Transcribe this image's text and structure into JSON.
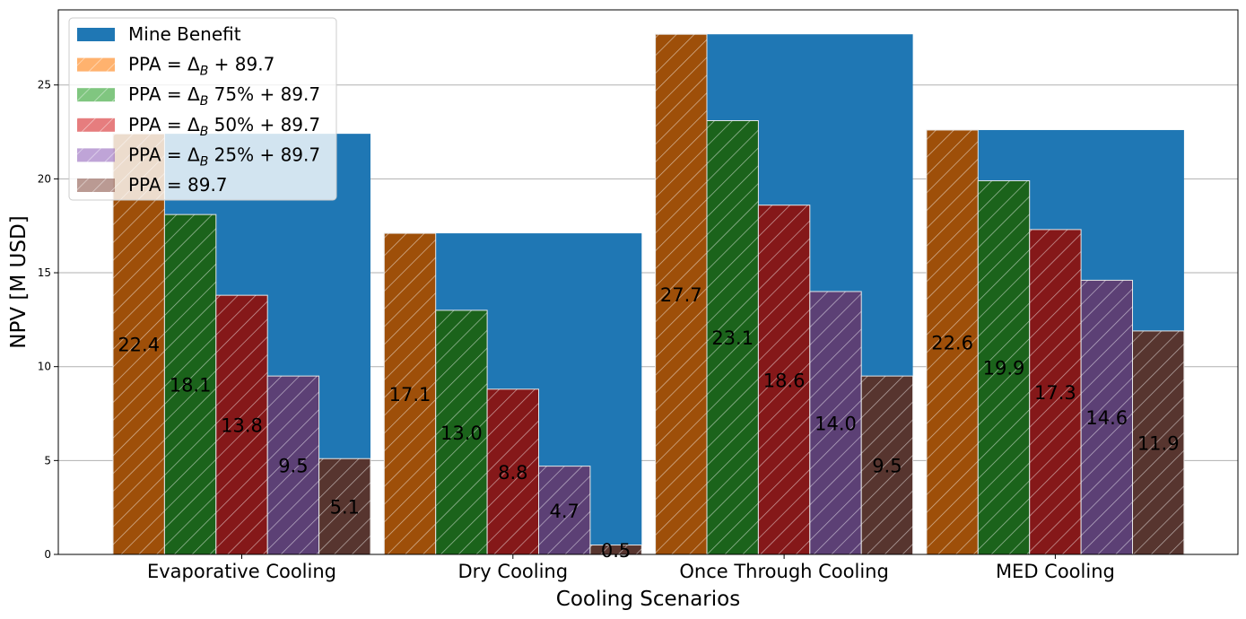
{
  "chart_data": {
    "type": "bar",
    "title": "",
    "xlabel": "Cooling Scenarios",
    "ylabel": "NPV [M USD]",
    "ylim": [
      0,
      29
    ],
    "yticks": [
      0,
      5,
      10,
      15,
      20,
      25
    ],
    "categories": [
      "Evaporative Cooling",
      "Dry Cooling",
      "Once Through Cooling",
      "MED Cooling"
    ],
    "background_series": {
      "name": "Mine Benefit",
      "values": [
        22.4,
        17.1,
        27.7,
        22.6
      ],
      "color": "#1f77b4"
    },
    "series": [
      {
        "name": "PPA = Δ_B + 89.7",
        "legend_prefix": "PPA = Δ",
        "legend_sub": "B",
        "legend_suffix": " + 89.7",
        "color": "#ff7f0e",
        "values": [
          22.4,
          17.1,
          27.7,
          22.6
        ],
        "labels": [
          "22.4",
          "17.1",
          "27.7",
          "22.6"
        ]
      },
      {
        "name": "PPA = Δ_B 75% + 89.7",
        "legend_prefix": "PPA = Δ",
        "legend_sub": "B",
        "legend_suffix": " 75% + 89.7",
        "color": "#2ca02c",
        "values": [
          18.1,
          13.0,
          23.1,
          19.9
        ],
        "labels": [
          "18.1",
          "13.0",
          "23.1",
          "19.9"
        ]
      },
      {
        "name": "PPA = Δ_B 50% + 89.7",
        "legend_prefix": "PPA = Δ",
        "legend_sub": "B",
        "legend_suffix": " 50% + 89.7",
        "color": "#d62728",
        "values": [
          13.8,
          8.8,
          18.6,
          17.3
        ],
        "labels": [
          "13.8",
          "8.8",
          "18.6",
          "17.3"
        ]
      },
      {
        "name": "PPA = Δ_B 25% + 89.7",
        "legend_prefix": "PPA = Δ",
        "legend_sub": "B",
        "legend_suffix": " 25% + 89.7",
        "color": "#9467bd",
        "values": [
          9.5,
          4.7,
          14.0,
          14.6
        ],
        "labels": [
          "9.5",
          "4.7",
          "14.0",
          "14.6"
        ]
      },
      {
        "name": "PPA = 89.7",
        "legend_prefix": "PPA = 89.7",
        "legend_sub": "",
        "legend_suffix": "",
        "color": "#8c564b",
        "values": [
          5.1,
          0.5,
          9.5,
          11.9
        ],
        "labels": [
          "5.1",
          "0.5",
          "9.5",
          "11.9"
        ]
      }
    ],
    "grid": "y",
    "legend_position": "top-left",
    "hatch": "diagonal"
  }
}
